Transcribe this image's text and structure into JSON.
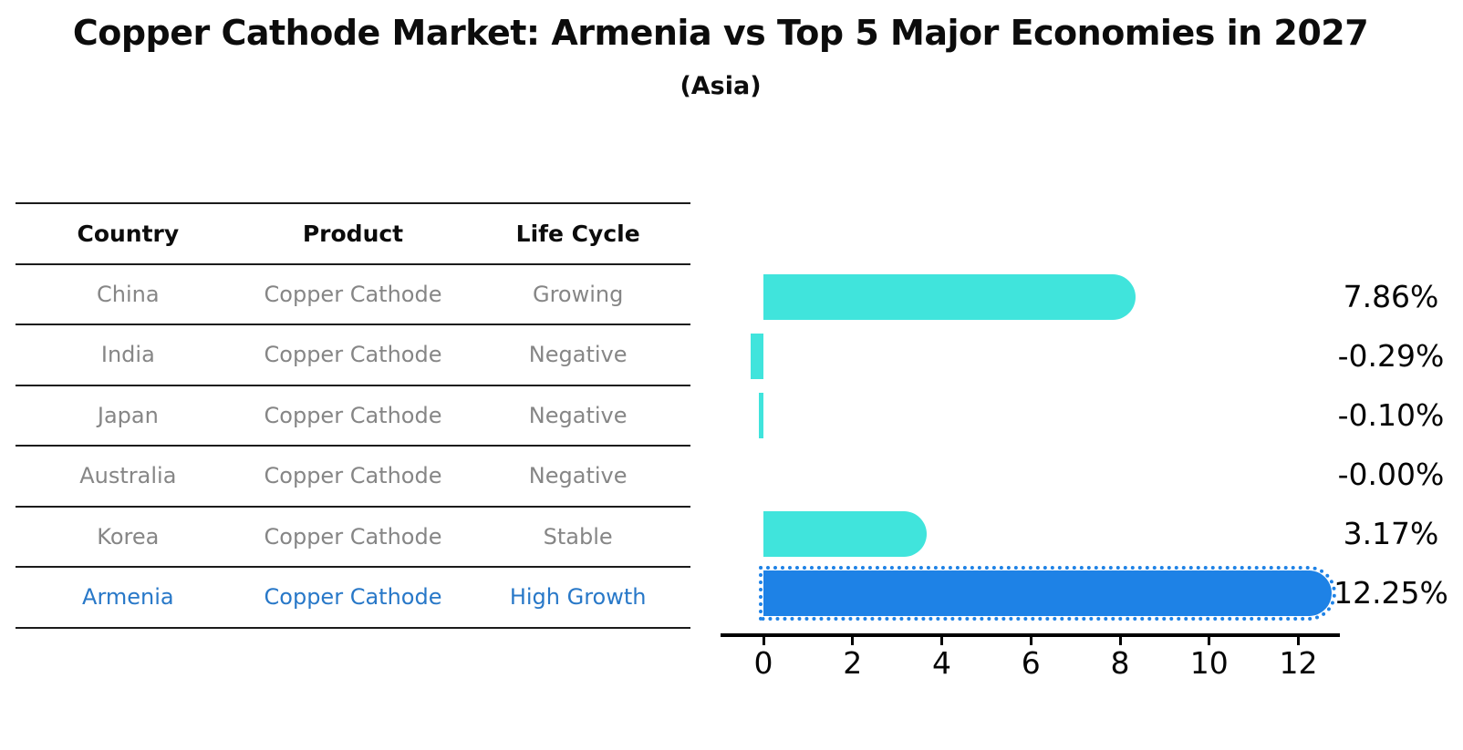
{
  "title": "Copper Cathode Market: Armenia vs Top 5 Major Economies in 2027",
  "subtitle": "(Asia)",
  "colors": {
    "bar_default": "#40e4dc",
    "bar_highlight": "#1e82e6",
    "highlight_text": "#2878c8",
    "table_text": "#868686",
    "header_text": "#0c0c0c",
    "axis": "#000000"
  },
  "table": {
    "headers": [
      "Country",
      "Product",
      "Life Cycle"
    ],
    "rows": [
      {
        "cells": [
          "China",
          "Copper Cathode",
          "Growing"
        ],
        "highlight": false
      },
      {
        "cells": [
          "India",
          "Copper Cathode",
          "Negative"
        ],
        "highlight": false
      },
      {
        "cells": [
          "Japan",
          "Copper Cathode",
          "Negative"
        ],
        "highlight": false
      },
      {
        "cells": [
          "Australia",
          "Copper Cathode",
          "Negative"
        ],
        "highlight": false
      },
      {
        "cells": [
          "Korea",
          "Copper Cathode",
          "Stable"
        ],
        "highlight": false
      },
      {
        "cells": [
          "Armenia",
          "Copper Cathode",
          "High Growth"
        ],
        "highlight": true
      }
    ]
  },
  "chart_data": {
    "type": "bar",
    "orientation": "horizontal",
    "title": "Copper Cathode Market: Armenia vs Top 5 Major Economies in 2027",
    "subtitle": "(Asia)",
    "categories": [
      "China",
      "India",
      "Japan",
      "Australia",
      "Korea",
      "Armenia"
    ],
    "values": [
      7.86,
      -0.29,
      -0.1,
      -0.0,
      3.17,
      12.25
    ],
    "value_labels": [
      "7.86%",
      "-0.29%",
      "-0.10%",
      "-0.00%",
      "3.17%",
      "12.25%"
    ],
    "highlight_index": 5,
    "x_ticks": [
      0,
      2,
      4,
      6,
      8,
      10,
      12
    ],
    "xlim": [
      -0.96,
      12.93
    ],
    "grid": false,
    "legend": false
  }
}
